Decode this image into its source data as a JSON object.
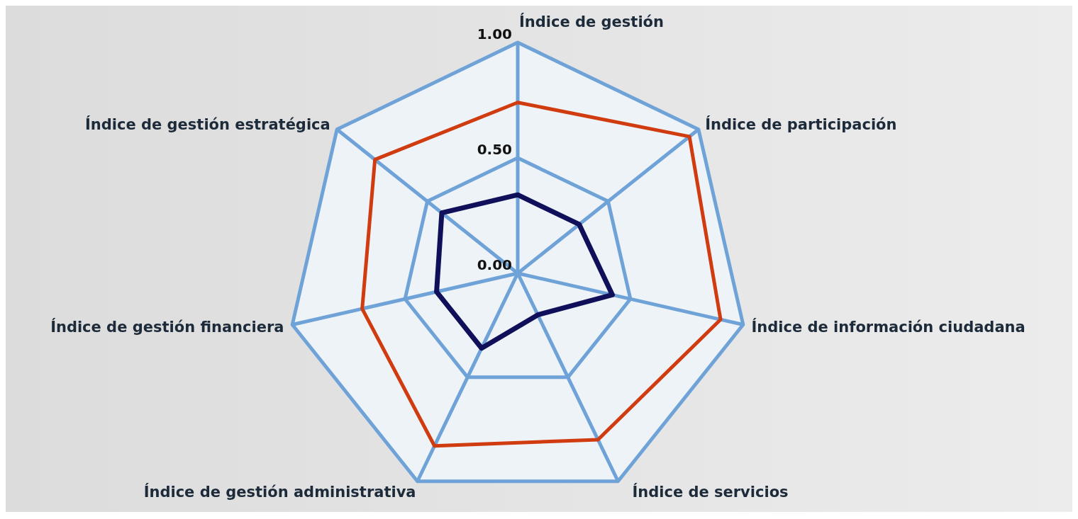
{
  "chart_data": {
    "type": "radar",
    "categories": [
      "Índice de gestión",
      "Índice de participación",
      "Índice de información ciudadana",
      "Índice de servicios",
      "Índice de gestión administrativa",
      "Índice de gestión financiera",
      "Índice de gestión estratégica"
    ],
    "series": [
      {
        "color": "#d03c10",
        "values": [
          0.74,
          0.95,
          0.9,
          0.8,
          0.83,
          0.69,
          0.79
        ]
      },
      {
        "color": "#10105a",
        "values": [
          0.34,
          0.34,
          0.42,
          0.2,
          0.36,
          0.36,
          0.42
        ]
      }
    ],
    "ylim": [
      0,
      1
    ],
    "yticks": [
      {
        "value": 0,
        "label": "0.00"
      },
      {
        "value": 0.5,
        "label": "0.50"
      },
      {
        "value": 1,
        "label": "1.00"
      }
    ],
    "grid": true
  }
}
